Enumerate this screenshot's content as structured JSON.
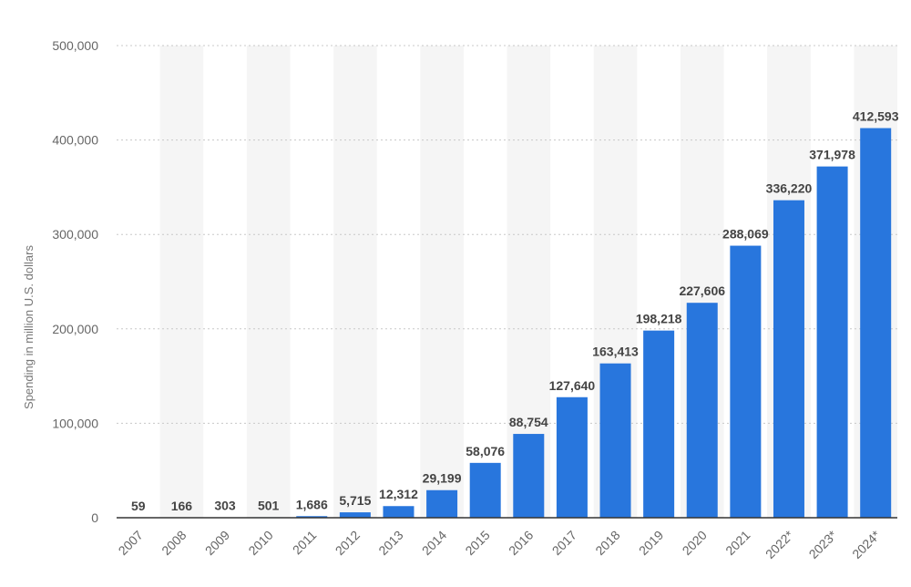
{
  "colors": {
    "bar": "#2876dd",
    "band": "#f5f5f5",
    "grid": "#c8c8c8",
    "axis_line": "#333333",
    "label": "#444444",
    "tick": "#666666"
  },
  "chart_data": {
    "type": "bar",
    "title": "",
    "xlabel": "",
    "ylabel": "Spending in million U.S. dollars",
    "ylim": [
      0,
      500000
    ],
    "yticks": [
      0,
      100000,
      200000,
      300000,
      400000,
      500000
    ],
    "ytick_labels": [
      "0",
      "100,000",
      "200,000",
      "300,000",
      "400,000",
      "500,000"
    ],
    "grid": true,
    "categories": [
      "2007",
      "2008",
      "2009",
      "2010",
      "2011",
      "2012",
      "2013",
      "2014",
      "2015",
      "2016",
      "2017",
      "2018",
      "2019",
      "2020",
      "2021",
      "2022*",
      "2023*",
      "2024*"
    ],
    "values": [
      59,
      166,
      303,
      501,
      1686,
      5715,
      12312,
      29199,
      58076,
      88754,
      127640,
      163413,
      198218,
      227606,
      288069,
      336220,
      371978,
      412593
    ],
    "value_labels": [
      "59",
      "166",
      "303",
      "501",
      "1,686",
      "5,715",
      "12,312",
      "29,199",
      "58,076",
      "88,754",
      "127,640",
      "163,413",
      "198,218",
      "227,606",
      "288,069",
      "336,220",
      "371,978",
      "412,593"
    ]
  }
}
